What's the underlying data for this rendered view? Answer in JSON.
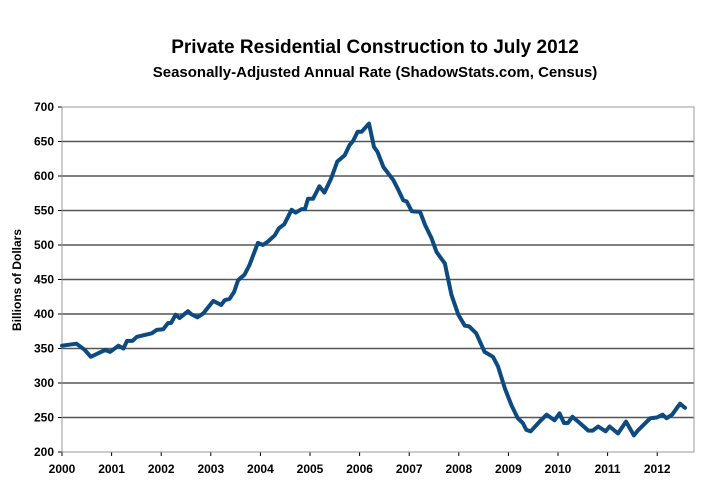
{
  "chart_data": {
    "type": "line",
    "title": "Private Residential Construction to July 2012",
    "subtitle": "Seasonally-Adjusted Annual Rate (ShadowStats.com, Census)",
    "xlabel": "",
    "ylabel": "Billions of Dollars",
    "xlim": [
      2000,
      2012.9
    ],
    "ylim": [
      200,
      700
    ],
    "x_ticks": [
      "2000",
      "2001",
      "2002",
      "2003",
      "2004",
      "2005",
      "2006",
      "2007",
      "2008",
      "2009",
      "2010",
      "2011",
      "2012"
    ],
    "y_ticks": [
      "200",
      "250",
      "300",
      "350",
      "400",
      "450",
      "500",
      "550",
      "600",
      "650",
      "700"
    ],
    "grid": true,
    "line_color": "#0d4a80",
    "series": [
      {
        "x": [
          2000.0,
          2000.29,
          2000.46,
          2000.58,
          2000.87,
          2000.97,
          2001.14,
          2001.24,
          2001.31,
          2001.42,
          2001.51,
          2001.81,
          2001.91,
          2002.04,
          2002.14,
          2002.2,
          2002.29,
          2002.37,
          2002.54,
          2002.6,
          2002.73,
          2002.85,
          2003.05,
          2003.21,
          2003.28,
          2003.38,
          2003.47,
          2003.55,
          2003.68,
          2003.78,
          2003.95,
          2004.05,
          2004.15,
          2004.29,
          2004.37,
          2004.48,
          2004.63,
          2004.71,
          2004.83,
          2004.9,
          2004.96,
          2005.06,
          2005.19,
          2005.29,
          2005.43,
          2005.55,
          2005.7,
          2005.8,
          2005.87,
          2005.96,
          2006.04,
          2006.19,
          2006.29,
          2006.36,
          2006.48,
          2006.68,
          2006.78,
          2006.88,
          2006.95,
          2007.05,
          2007.22,
          2007.32,
          2007.45,
          2007.55,
          2007.72,
          2007.85,
          2007.99,
          2008.12,
          2008.21,
          2008.35,
          2008.52,
          2008.69,
          2008.79,
          2008.93,
          2009.06,
          2009.19,
          2009.29,
          2009.36,
          2009.45,
          2009.63,
          2009.77,
          2009.93,
          2010.03,
          2010.12,
          2010.2,
          2010.29,
          2010.44,
          2010.61,
          2010.7,
          2010.81,
          2010.96,
          2011.04,
          2011.21,
          2011.37,
          2011.53,
          2011.62,
          2011.86,
          2011.99,
          2012.11,
          2012.19,
          2012.3,
          2012.46,
          2012.56
        ],
        "values": [
          354,
          357,
          348,
          338,
          348,
          345,
          354,
          350,
          361,
          361,
          367,
          372,
          377,
          378,
          387,
          387,
          399,
          394,
          404,
          400,
          395,
          401,
          419,
          413,
          420,
          422,
          432,
          449,
          457,
          471,
          503,
          500,
          505,
          514,
          524,
          530,
          551,
          547,
          552,
          552,
          567,
          567,
          585,
          576,
          597,
          621,
          630,
          645,
          651,
          664,
          664,
          676,
          642,
          635,
          613,
          594,
          580,
          565,
          563,
          549,
          548,
          529,
          510,
          490,
          473,
          428,
          399,
          383,
          382,
          372,
          345,
          338,
          324,
          292,
          268,
          249,
          242,
          232,
          230,
          244,
          254,
          246,
          256,
          242,
          242,
          251,
          242,
          231,
          231,
          237,
          230,
          237,
          227,
          244,
          224,
          232,
          249,
          250,
          254,
          249,
          254,
          270,
          264
        ]
      }
    ]
  }
}
